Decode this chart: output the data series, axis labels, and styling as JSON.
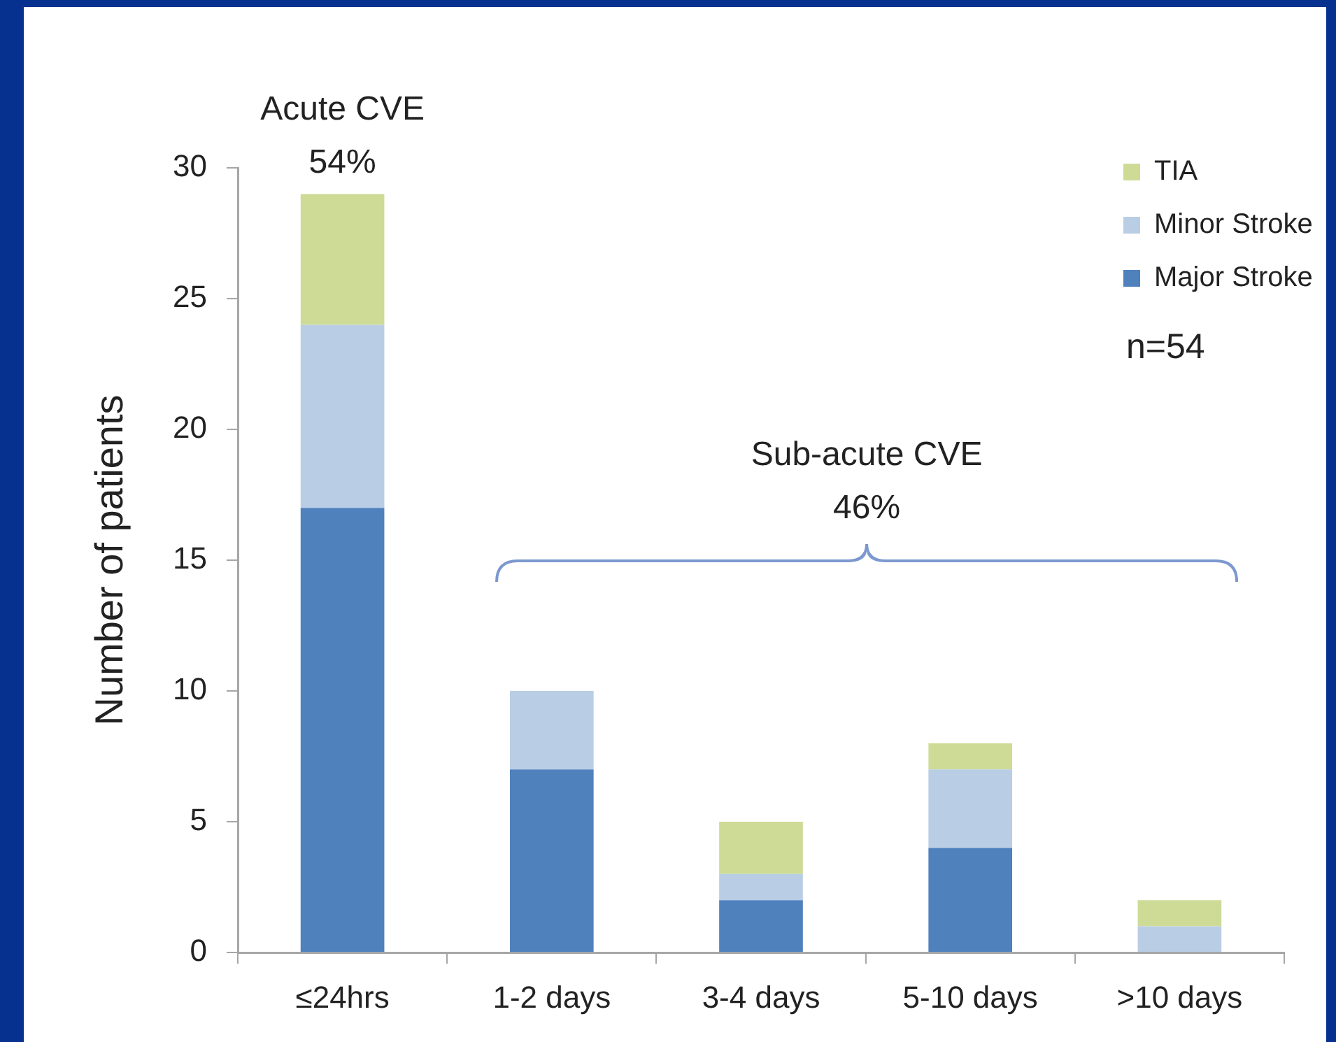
{
  "chart_data": {
    "type": "bar",
    "stacked": true,
    "ylabel": "Number of patients",
    "categories": [
      "≤24hrs",
      "1-2 days",
      "3-4 days",
      "5-10 days",
      ">10 days"
    ],
    "series": [
      {
        "name": "Major Stroke",
        "color": "#4f81bd",
        "values": [
          17,
          7,
          2,
          4,
          0
        ]
      },
      {
        "name": "Minor Stroke",
        "color": "#b9cde5",
        "values": [
          7,
          3,
          1,
          3,
          1
        ]
      },
      {
        "name": "TIA",
        "color": "#cddb97",
        "values": [
          5,
          0,
          2,
          1,
          1
        ]
      }
    ],
    "ylim": [
      0,
      30
    ],
    "yticks": [
      0,
      5,
      10,
      15,
      20,
      25,
      30
    ],
    "grid": false,
    "legend": "top right",
    "annotations": [
      {
        "text": "Acute CVE\n54%",
        "x": "≤24hrs",
        "y": 29
      },
      "Sub-acute CVE\n46%",
      "n=54"
    ]
  }
}
